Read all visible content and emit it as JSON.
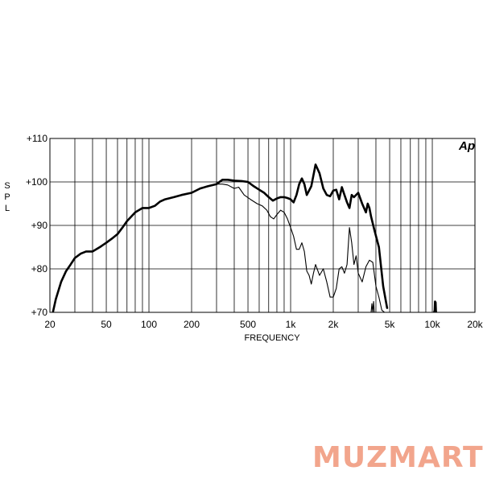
{
  "chart_data": {
    "type": "line",
    "title": "",
    "xlabel": "FREQUENCY",
    "ylabel": "SPL",
    "x_scale": "log",
    "xlim": [
      20,
      20000
    ],
    "ylim": [
      70,
      110
    ],
    "grid": true,
    "x_ticks": [
      {
        "value": 20,
        "label": "20"
      },
      {
        "value": 50,
        "label": "50"
      },
      {
        "value": 100,
        "label": "100"
      },
      {
        "value": 200,
        "label": "200"
      },
      {
        "value": 500,
        "label": "500"
      },
      {
        "value": 1000,
        "label": "1k"
      },
      {
        "value": 2000,
        "label": "2k"
      },
      {
        "value": 5000,
        "label": "5k"
      },
      {
        "value": 10000,
        "label": "10k"
      },
      {
        "value": 20000,
        "label": "20k"
      }
    ],
    "y_ticks": [
      {
        "value": 70,
        "label": "+70"
      },
      {
        "value": 80,
        "label": "+80"
      },
      {
        "value": 90,
        "label": "+90"
      },
      {
        "value": 100,
        "label": "+100"
      },
      {
        "value": 110,
        "label": "+110"
      }
    ],
    "series": [
      {
        "stroke": "thick",
        "x": [
          21,
          22,
          24,
          26,
          28,
          30,
          33,
          36,
          40,
          45,
          50,
          55,
          60,
          65,
          70,
          80,
          90,
          100,
          110,
          120,
          130,
          150,
          170,
          200,
          230,
          260,
          300,
          330,
          360,
          400,
          450,
          500,
          550,
          600,
          650,
          700,
          750,
          800,
          850,
          900,
          950,
          1000,
          1050,
          1100,
          1150,
          1200,
          1250,
          1300,
          1400,
          1500,
          1600,
          1700,
          1800,
          1900,
          2000,
          2100,
          2200,
          2300,
          2400,
          2500,
          2600,
          2700,
          2800,
          3000,
          3200,
          3400,
          3500,
          3600,
          3700,
          3900,
          4200,
          4500,
          4800
        ],
        "y": [
          70,
          73,
          77,
          79.5,
          81,
          82.5,
          83.5,
          84,
          84,
          85,
          86,
          87,
          88,
          89.5,
          91,
          93,
          94,
          94,
          94.5,
          95.5,
          96,
          96.5,
          97,
          97.5,
          98.5,
          99,
          99.5,
          100.5,
          100.5,
          100.3,
          100.2,
          100,
          99,
          98.2,
          97.5,
          96.5,
          95.7,
          96.2,
          96.5,
          96.5,
          96.3,
          96,
          95.3,
          97,
          99.5,
          100.8,
          99.5,
          97,
          99,
          104,
          102,
          98.5,
          97,
          96.7,
          98,
          98.2,
          96,
          98.8,
          97,
          95.3,
          94,
          97,
          96.5,
          97.5,
          95,
          93,
          95,
          94,
          92,
          89,
          85,
          76,
          71
        ]
      },
      {
        "stroke": "thin",
        "x": [
          290,
          330,
          360,
          400,
          430,
          470,
          520,
          580,
          630,
          680,
          720,
          760,
          800,
          850,
          900,
          950,
          1000,
          1050,
          1100,
          1150,
          1200,
          1250,
          1300,
          1350,
          1400,
          1450,
          1500,
          1600,
          1700,
          1800,
          1900,
          2000,
          2100,
          2200,
          2300,
          2400,
          2500,
          2600,
          2700,
          2800,
          2900,
          3000,
          3200,
          3400,
          3600,
          3800,
          4000,
          4200,
          4400,
          4600
        ],
        "y": [
          99.5,
          99.5,
          99.3,
          98.5,
          98.8,
          97,
          96,
          95,
          94.5,
          93.5,
          92,
          91.5,
          92.5,
          93.5,
          93,
          91.5,
          89.5,
          87.5,
          84.5,
          84.5,
          86,
          84,
          79.5,
          78.5,
          76.5,
          79,
          81,
          78.5,
          80,
          77,
          73.5,
          73.5,
          75.5,
          80,
          80.5,
          79,
          81,
          89.5,
          86,
          81,
          83,
          79,
          77,
          80.5,
          82,
          81.5,
          76,
          73.5,
          70.5,
          70
        ]
      },
      {
        "stroke": "thin",
        "x": [
          3700,
          3750,
          3800,
          3850,
          3900
        ],
        "y": [
          70,
          72,
          70,
          72.5,
          70
        ]
      },
      {
        "stroke": "thick",
        "x": [
          10300,
          10400,
          10450,
          10500,
          10550,
          10600,
          10650
        ],
        "y": [
          70,
          70.5,
          72.5,
          71,
          72.3,
          70.3,
          70
        ]
      }
    ]
  }
}
